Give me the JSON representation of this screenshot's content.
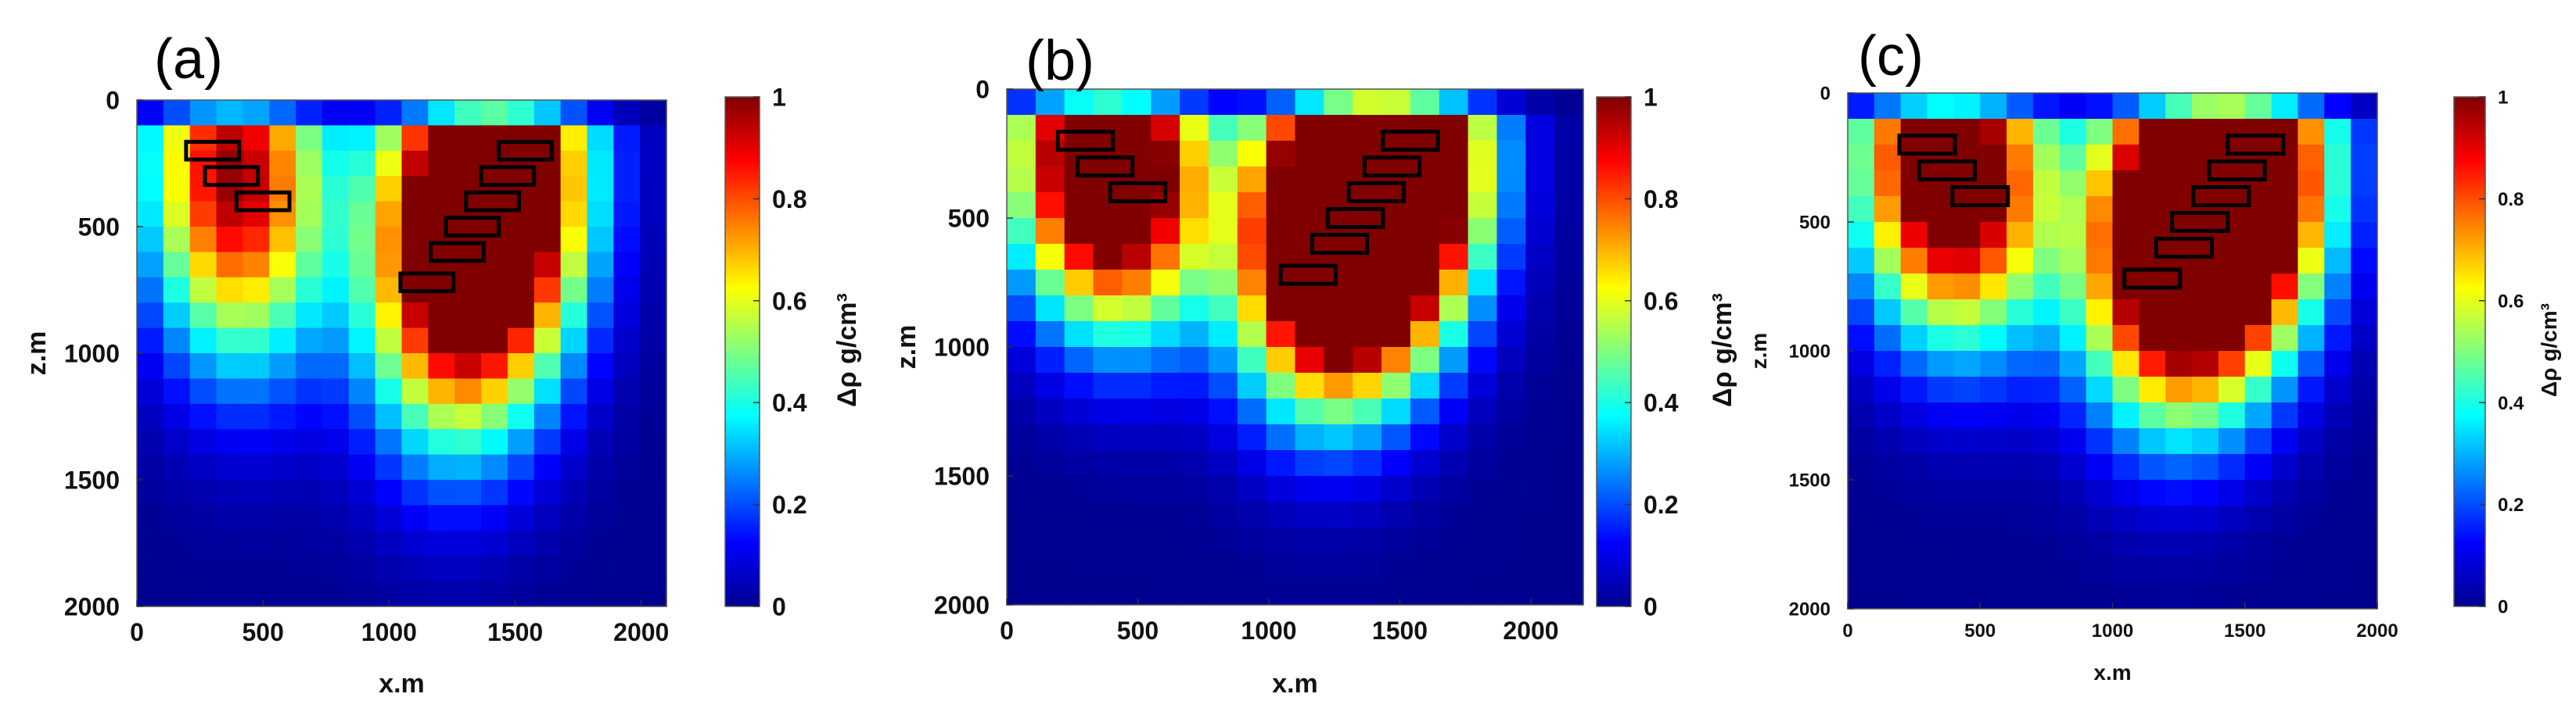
{
  "chart_data": [
    {
      "type": "heatmap",
      "panel_label": "(a)",
      "xlabel": "x.m",
      "ylabel": "z.m",
      "xlim": [
        0,
        2100
      ],
      "ylim": [
        2000,
        0
      ],
      "xticks": [
        "0",
        "500",
        "1000",
        "1500",
        "2000"
      ],
      "yticks": [
        "0",
        "500",
        "1000",
        "1500",
        "2000"
      ],
      "colorbar_label": "Δρ g/cm³",
      "colorbar_ticks": [
        "0",
        "0.2",
        "0.4",
        "0.6",
        "0.8",
        "1"
      ],
      "colormap": "jet",
      "blob_intensity": 0.85,
      "depth_spread": 1.0,
      "rectangles": [
        {
          "x": 300,
          "z": 200
        },
        {
          "x": 375,
          "z": 300
        },
        {
          "x": 500,
          "z": 400
        },
        {
          "x": 1540,
          "z": 200
        },
        {
          "x": 1470,
          "z": 300
        },
        {
          "x": 1410,
          "z": 400
        },
        {
          "x": 1330,
          "z": 500
        },
        {
          "x": 1270,
          "z": 600
        },
        {
          "x": 1150,
          "z": 720
        }
      ]
    },
    {
      "type": "heatmap",
      "panel_label": "(b)",
      "xlabel": "x.m",
      "ylabel": "z.m",
      "xlim": [
        0,
        2200
      ],
      "ylim": [
        2000,
        0
      ],
      "xticks": [
        "0",
        "500",
        "1000",
        "1500",
        "2000"
      ],
      "yticks": [
        "0",
        "500",
        "1000",
        "1500",
        "2000"
      ],
      "colorbar_label": "Δρ g/cm³",
      "colorbar_ticks": [
        "0",
        "0.2",
        "0.4",
        "0.6",
        "0.8",
        "1"
      ],
      "colormap": "jet",
      "blob_intensity": 1.25,
      "depth_spread": 0.62,
      "rectangles": [
        {
          "x": 300,
          "z": 200
        },
        {
          "x": 375,
          "z": 300
        },
        {
          "x": 500,
          "z": 400
        },
        {
          "x": 1540,
          "z": 200
        },
        {
          "x": 1470,
          "z": 300
        },
        {
          "x": 1410,
          "z": 400
        },
        {
          "x": 1330,
          "z": 500
        },
        {
          "x": 1270,
          "z": 600
        },
        {
          "x": 1150,
          "z": 720
        }
      ]
    },
    {
      "type": "heatmap",
      "panel_label": "(c)",
      "xlabel": "x.m",
      "ylabel": "z.m",
      "xlim": [
        0,
        2000
      ],
      "ylim": [
        2000,
        0
      ],
      "xticks": [
        "0",
        "500",
        "1000",
        "1500",
        "2000"
      ],
      "yticks": [
        "0",
        "500",
        "1000",
        "1500",
        "2000"
      ],
      "colorbar_label": "Δρ g/cm³",
      "colorbar_ticks": [
        "0",
        "0.2",
        "0.4",
        "0.6",
        "0.8",
        "1"
      ],
      "colormap": "jet",
      "blob_intensity": 1.1,
      "depth_spread": 0.72,
      "rectangles": [
        {
          "x": 300,
          "z": 200
        },
        {
          "x": 375,
          "z": 300
        },
        {
          "x": 500,
          "z": 400
        },
        {
          "x": 1540,
          "z": 200
        },
        {
          "x": 1470,
          "z": 300
        },
        {
          "x": 1410,
          "z": 400
        },
        {
          "x": 1330,
          "z": 500
        },
        {
          "x": 1270,
          "z": 600
        },
        {
          "x": 1150,
          "z": 720
        }
      ]
    }
  ]
}
